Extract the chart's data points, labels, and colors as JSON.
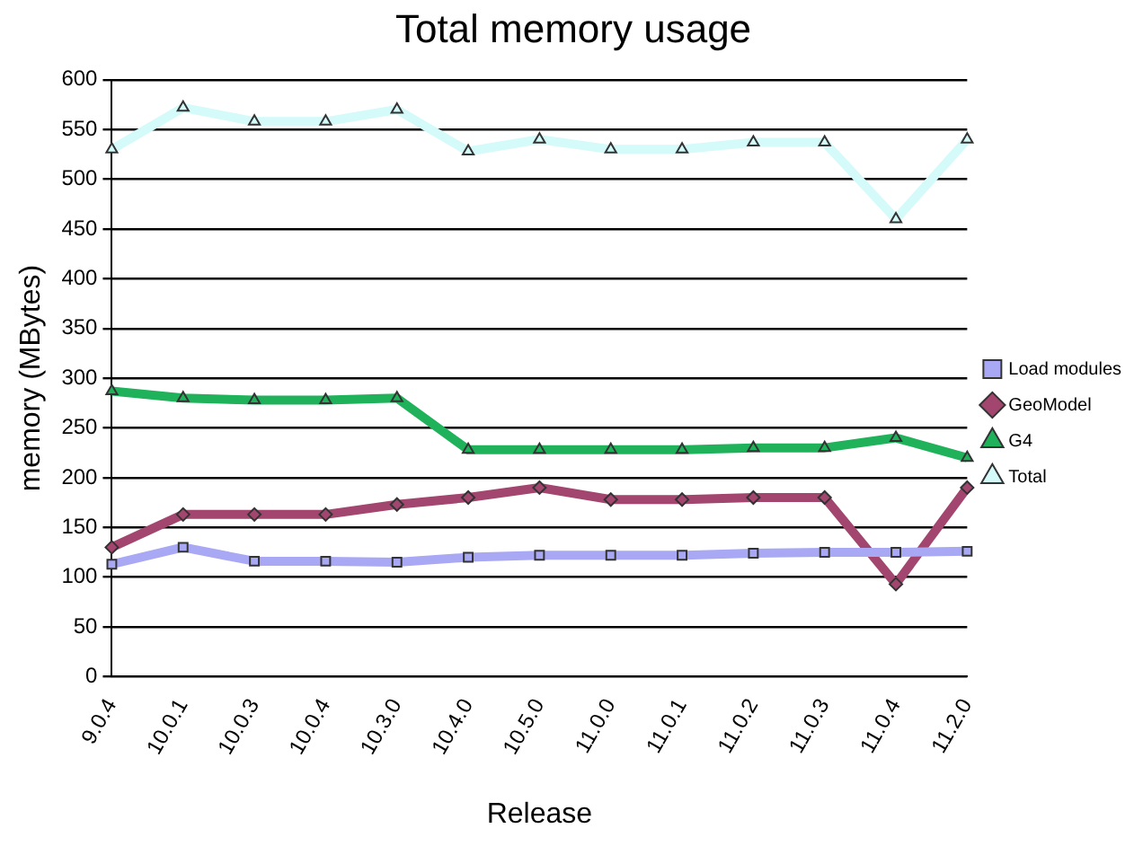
{
  "chart_data": {
    "type": "line",
    "title": "Total memory usage",
    "xlabel": "Release",
    "ylabel": "memory (MBytes)",
    "categories": [
      "9.0.4",
      "10.0.1",
      "10.0.3",
      "10.0.4",
      "10.3.0",
      "10.4.0",
      "10.5.0",
      "11.0.0",
      "11.0.1",
      "11.0.2",
      "11.0.3",
      "11.0.4",
      "11.2.0"
    ],
    "series": [
      {
        "name": "Load modules",
        "color": "#a8a8f4",
        "marker": "square",
        "values": [
          113,
          130,
          116,
          116,
          115,
          120,
          122,
          122,
          122,
          124,
          125,
          125,
          126
        ]
      },
      {
        "name": "GeoModel",
        "color": "#a3466f",
        "marker": "diamond",
        "values": [
          130,
          163,
          163,
          163,
          173,
          180,
          190,
          178,
          178,
          180,
          180,
          93,
          190
        ]
      },
      {
        "name": "G4",
        "color": "#1fb25a",
        "marker": "triangle",
        "values": [
          287,
          280,
          278,
          278,
          280,
          228,
          228,
          228,
          228,
          230,
          230,
          240,
          220
        ]
      },
      {
        "name": "Total",
        "color": "#d4fafa",
        "marker": "triangle",
        "values": [
          530,
          572,
          558,
          558,
          570,
          528,
          540,
          530,
          530,
          537,
          537,
          460,
          540
        ]
      }
    ],
    "ylim": [
      0,
      600
    ],
    "yticks": [
      0,
      50,
      100,
      150,
      200,
      250,
      300,
      350,
      400,
      450,
      500,
      550,
      600
    ],
    "grid": "y",
    "legend": "right",
    "line_style": "solid"
  }
}
